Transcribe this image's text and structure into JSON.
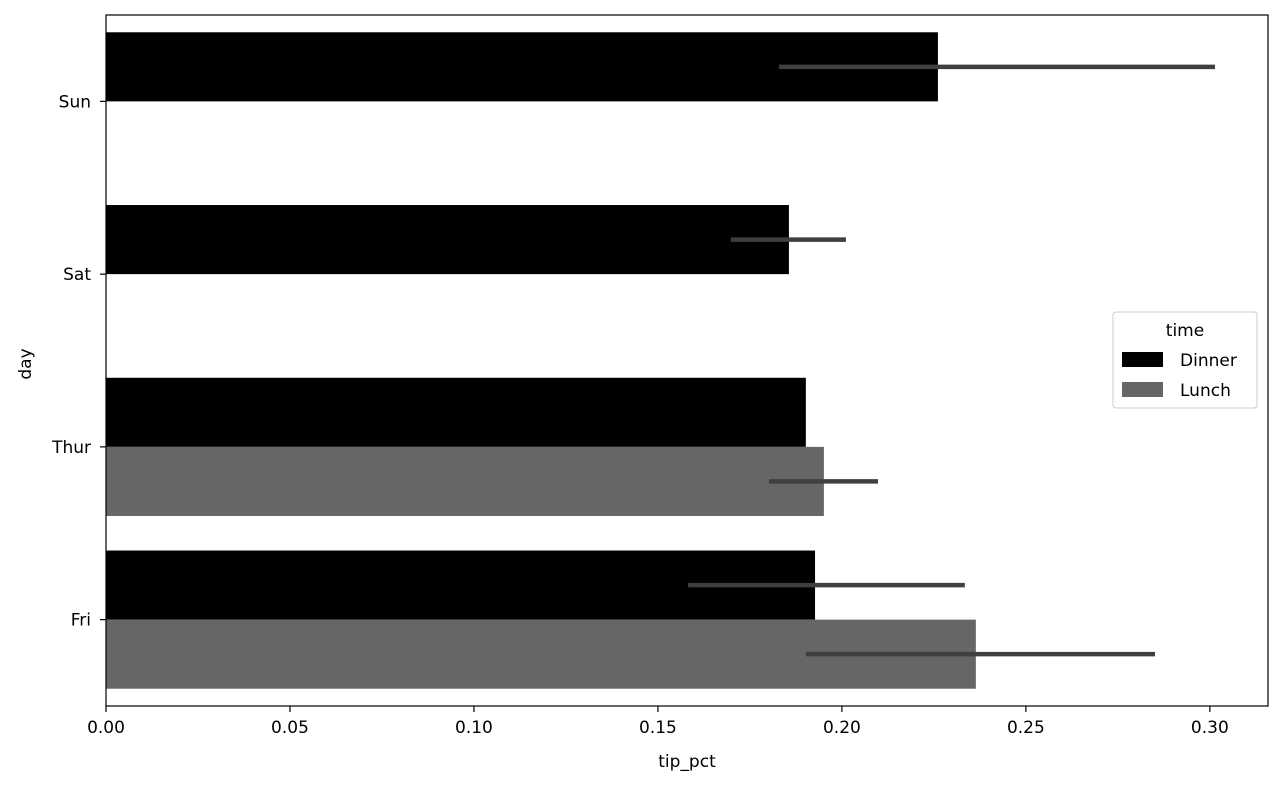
{
  "chart_data": {
    "type": "bar",
    "orientation": "horizontal",
    "xlabel": "tip_pct",
    "ylabel": "day",
    "xlim": [
      0,
      0.3158
    ],
    "xticks": [
      "0.00",
      "0.05",
      "0.10",
      "0.15",
      "0.20",
      "0.25",
      "0.30"
    ],
    "categories": [
      "Sun",
      "Sat",
      "Thur",
      "Fri"
    ],
    "grid": false,
    "legend": {
      "title": "time",
      "placement": "right"
    },
    "series": [
      {
        "name": "Dinner",
        "color": "#000000",
        "values": [
          0.2261,
          0.1856,
          0.1902,
          0.1927
        ],
        "ci": [
          [
            0.1829,
            0.3014
          ],
          [
            0.1698,
            0.2011
          ],
          null,
          [
            0.1582,
            0.2334
          ]
        ]
      },
      {
        "name": "Lunch",
        "color": "#666666",
        "values": [
          null,
          null,
          0.1951,
          0.2364
        ],
        "ci": [
          null,
          null,
          [
            0.1802,
            0.2098
          ],
          [
            0.1902,
            0.2851
          ]
        ]
      }
    ],
    "errorbar_color": "#3f3f3f"
  }
}
